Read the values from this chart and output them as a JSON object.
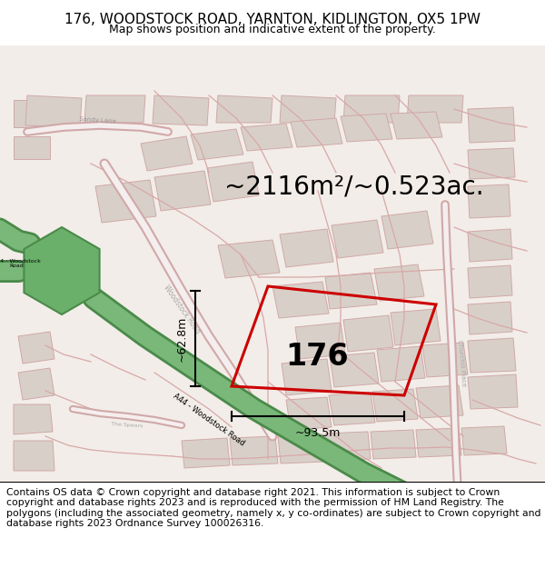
{
  "title": "176, WOODSTOCK ROAD, YARNTON, KIDLINGTON, OX5 1PW",
  "subtitle": "Map shows position and indicative extent of the property.",
  "area_text": "~2116m²/~0.523ac.",
  "width_label": "~93.5m",
  "height_label": "~62.8m",
  "number_label": "176",
  "footer": "Contains OS data © Crown copyright and database right 2021. This information is subject to Crown copyright and database rights 2023 and is reproduced with the permission of HM Land Registry. The polygons (including the associated geometry, namely x, y co-ordinates) are subject to Crown copyright and database rights 2023 Ordnance Survey 100026316.",
  "bg_color": "#f2ede8",
  "road_pink": "#e8b0b0",
  "road_pink_fill": "#f8f2f0",
  "green_road_dark": "#4a8a4a",
  "green_road_light": "#7ab87a",
  "plot_color": "#cc0000",
  "building_fill": "#d8d0c8",
  "building_edge": "#d0a8a8",
  "title_fontsize": 11,
  "subtitle_fontsize": 9,
  "area_fontsize": 20,
  "footer_fontsize": 7.8,
  "dim_lw": 1.5,
  "plot_lw": 2.2,
  "road_lw": 1.0
}
